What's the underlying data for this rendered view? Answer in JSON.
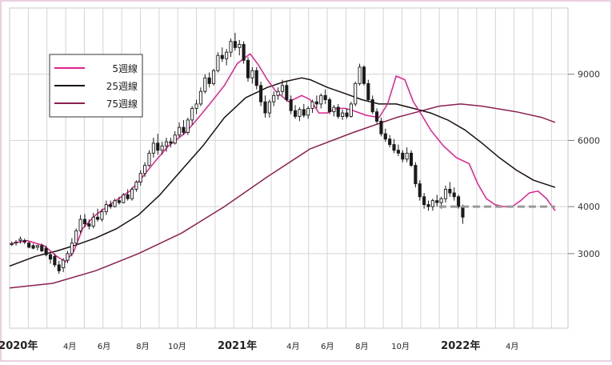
{
  "chart_data": {
    "type": "candlestick",
    "grid": true,
    "legend": {
      "placement": "top-left",
      "entries": [
        {
          "label": "5週線",
          "color": "#e0208c"
        },
        {
          "label": "25週線",
          "color": "#1a1010"
        },
        {
          "label": "75週線",
          "color": "#8a2050"
        }
      ]
    },
    "y_axis": {
      "scale": "log",
      "side": "right",
      "ticks": [
        3000,
        4000,
        6000,
        9000
      ],
      "range": [
        1900,
        13500
      ]
    },
    "x_axis": {
      "range": [
        0,
        130
      ],
      "labels": [
        {
          "week": 2,
          "text": "2020年",
          "major": true
        },
        {
          "week": 14,
          "text": "4月",
          "major": false
        },
        {
          "week": 22,
          "text": "6月",
          "major": false
        },
        {
          "week": 31,
          "text": "8月",
          "major": false
        },
        {
          "week": 39,
          "text": "10月",
          "major": false
        },
        {
          "week": 53,
          "text": "2021年",
          "major": true
        },
        {
          "week": 66,
          "text": "4月",
          "major": false
        },
        {
          "week": 74,
          "text": "6月",
          "major": false
        },
        {
          "week": 82,
          "text": "8月",
          "major": false
        },
        {
          "week": 91,
          "text": "10月",
          "major": false
        },
        {
          "week": 105,
          "text": "2022年",
          "major": true
        },
        {
          "week": 117,
          "text": "4月",
          "major": false
        }
      ]
    },
    "support_line": {
      "value": 4000,
      "from_week": 100,
      "to_week": 127,
      "color": "#999999"
    },
    "series": [
      {
        "name": "5週線",
        "color": "#e0208c",
        "points": [
          [
            0,
            3180
          ],
          [
            4,
            3250
          ],
          [
            8,
            3150
          ],
          [
            11,
            2950
          ],
          [
            13,
            2850
          ],
          [
            15,
            3050
          ],
          [
            17,
            3500
          ],
          [
            20,
            3800
          ],
          [
            24,
            4100
          ],
          [
            28,
            4400
          ],
          [
            31,
            4800
          ],
          [
            34,
            5300
          ],
          [
            37,
            5800
          ],
          [
            41,
            6300
          ],
          [
            44,
            6900
          ],
          [
            47,
            7600
          ],
          [
            50,
            8400
          ],
          [
            53,
            9600
          ],
          [
            56,
            10200
          ],
          [
            58,
            9500
          ],
          [
            60,
            8700
          ],
          [
            62,
            8100
          ],
          [
            65,
            7600
          ],
          [
            68,
            7900
          ],
          [
            70,
            7700
          ],
          [
            72,
            7100
          ],
          [
            74,
            7100
          ],
          [
            76,
            7300
          ],
          [
            78,
            7300
          ],
          [
            80,
            7200
          ],
          [
            83,
            7000
          ],
          [
            86,
            6900
          ],
          [
            88,
            7500
          ],
          [
            90,
            8900
          ],
          [
            92,
            8700
          ],
          [
            94,
            7600
          ],
          [
            96,
            7000
          ],
          [
            98,
            6400
          ],
          [
            101,
            5800
          ],
          [
            104,
            5400
          ],
          [
            107,
            5200
          ],
          [
            109,
            4600
          ],
          [
            111,
            4200
          ],
          [
            113,
            4050
          ],
          [
            115,
            4000
          ],
          [
            117,
            4000
          ],
          [
            119,
            4150
          ],
          [
            121,
            4350
          ],
          [
            123,
            4400
          ],
          [
            125,
            4200
          ],
          [
            127,
            3900
          ]
        ]
      },
      {
        "name": "25週線",
        "color": "#1a1010",
        "points": [
          [
            0,
            2780
          ],
          [
            6,
            2950
          ],
          [
            11,
            3050
          ],
          [
            15,
            3150
          ],
          [
            20,
            3300
          ],
          [
            25,
            3500
          ],
          [
            30,
            3800
          ],
          [
            35,
            4300
          ],
          [
            40,
            5000
          ],
          [
            45,
            5800
          ],
          [
            50,
            6900
          ],
          [
            55,
            7800
          ],
          [
            60,
            8300
          ],
          [
            64,
            8600
          ],
          [
            68,
            8800
          ],
          [
            70,
            8700
          ],
          [
            74,
            8300
          ],
          [
            78,
            8000
          ],
          [
            82,
            7700
          ],
          [
            86,
            7500
          ],
          [
            90,
            7500
          ],
          [
            94,
            7300
          ],
          [
            98,
            7100
          ],
          [
            102,
            6800
          ],
          [
            106,
            6400
          ],
          [
            110,
            5900
          ],
          [
            114,
            5400
          ],
          [
            118,
            5000
          ],
          [
            122,
            4700
          ],
          [
            127,
            4500
          ]
        ]
      },
      {
        "name": "75週線",
        "color": "#8a2050",
        "points": [
          [
            0,
            2430
          ],
          [
            10,
            2500
          ],
          [
            20,
            2700
          ],
          [
            30,
            3000
          ],
          [
            40,
            3400
          ],
          [
            50,
            4000
          ],
          [
            60,
            4800
          ],
          [
            70,
            5700
          ],
          [
            80,
            6300
          ],
          [
            90,
            6900
          ],
          [
            100,
            7400
          ],
          [
            105,
            7500
          ],
          [
            110,
            7400
          ],
          [
            118,
            7150
          ],
          [
            124,
            6900
          ],
          [
            127,
            6700
          ]
        ]
      }
    ],
    "candles": [
      {
        "o": 3180,
        "h": 3230,
        "l": 3140,
        "c": 3190
      },
      {
        "o": 3200,
        "h": 3260,
        "l": 3150,
        "c": 3220
      },
      {
        "o": 3250,
        "h": 3330,
        "l": 3190,
        "c": 3280
      },
      {
        "o": 3250,
        "h": 3290,
        "l": 3180,
        "c": 3220
      },
      {
        "o": 3200,
        "h": 3230,
        "l": 3100,
        "c": 3120
      },
      {
        "o": 3150,
        "h": 3190,
        "l": 3080,
        "c": 3100
      },
      {
        "o": 3120,
        "h": 3170,
        "l": 3060,
        "c": 3150
      },
      {
        "o": 3150,
        "h": 3190,
        "l": 3030,
        "c": 3050
      },
      {
        "o": 3100,
        "h": 3150,
        "l": 2950,
        "c": 2980
      },
      {
        "o": 2980,
        "h": 3030,
        "l": 2820,
        "c": 2900
      },
      {
        "o": 2950,
        "h": 3000,
        "l": 2760,
        "c": 2800
      },
      {
        "o": 2800,
        "h": 2870,
        "l": 2650,
        "c": 2700
      },
      {
        "o": 2750,
        "h": 2920,
        "l": 2680,
        "c": 2880
      },
      {
        "o": 2880,
        "h": 3050,
        "l": 2830,
        "c": 3000
      },
      {
        "o": 3000,
        "h": 3300,
        "l": 2950,
        "c": 3200
      },
      {
        "o": 3200,
        "h": 3500,
        "l": 3150,
        "c": 3450
      },
      {
        "o": 3450,
        "h": 3800,
        "l": 3400,
        "c": 3700
      },
      {
        "o": 3700,
        "h": 3820,
        "l": 3520,
        "c": 3600
      },
      {
        "o": 3600,
        "h": 3700,
        "l": 3480,
        "c": 3550
      },
      {
        "o": 3550,
        "h": 3850,
        "l": 3500,
        "c": 3750
      },
      {
        "o": 3750,
        "h": 3950,
        "l": 3650,
        "c": 3700
      },
      {
        "o": 3700,
        "h": 3950,
        "l": 3650,
        "c": 3880
      },
      {
        "o": 3880,
        "h": 4150,
        "l": 3800,
        "c": 4050
      },
      {
        "o": 4050,
        "h": 4150,
        "l": 3950,
        "c": 4000
      },
      {
        "o": 4000,
        "h": 4200,
        "l": 3980,
        "c": 4150
      },
      {
        "o": 4150,
        "h": 4250,
        "l": 4050,
        "c": 4100
      },
      {
        "o": 4100,
        "h": 4350,
        "l": 4080,
        "c": 4300
      },
      {
        "o": 4300,
        "h": 4450,
        "l": 4150,
        "c": 4200
      },
      {
        "o": 4200,
        "h": 4500,
        "l": 4150,
        "c": 4450
      },
      {
        "o": 4450,
        "h": 4700,
        "l": 4380,
        "c": 4650
      },
      {
        "o": 4650,
        "h": 5000,
        "l": 4550,
        "c": 4900
      },
      {
        "o": 4900,
        "h": 5250,
        "l": 4800,
        "c": 5150
      },
      {
        "o": 5150,
        "h": 5650,
        "l": 5100,
        "c": 5550
      },
      {
        "o": 5550,
        "h": 6100,
        "l": 5400,
        "c": 5900
      },
      {
        "o": 5900,
        "h": 6250,
        "l": 5500,
        "c": 5650
      },
      {
        "o": 5650,
        "h": 5950,
        "l": 5500,
        "c": 5800
      },
      {
        "o": 5800,
        "h": 6100,
        "l": 5600,
        "c": 5950
      },
      {
        "o": 5950,
        "h": 6100,
        "l": 5750,
        "c": 5900
      },
      {
        "o": 5900,
        "h": 6350,
        "l": 5850,
        "c": 6200
      },
      {
        "o": 6200,
        "h": 6700,
        "l": 6100,
        "c": 6500
      },
      {
        "o": 6500,
        "h": 6800,
        "l": 6200,
        "c": 6300
      },
      {
        "o": 6300,
        "h": 6900,
        "l": 6200,
        "c": 6800
      },
      {
        "o": 6800,
        "h": 7400,
        "l": 6600,
        "c": 7300
      },
      {
        "o": 7300,
        "h": 7700,
        "l": 7050,
        "c": 7500
      },
      {
        "o": 7500,
        "h": 8300,
        "l": 7400,
        "c": 8100
      },
      {
        "o": 8100,
        "h": 9000,
        "l": 8000,
        "c": 8800
      },
      {
        "o": 8800,
        "h": 9100,
        "l": 8300,
        "c": 8500
      },
      {
        "o": 8500,
        "h": 9300,
        "l": 8400,
        "c": 9200
      },
      {
        "o": 9200,
        "h": 10300,
        "l": 9100,
        "c": 10100
      },
      {
        "o": 10100,
        "h": 10600,
        "l": 9700,
        "c": 9900
      },
      {
        "o": 9900,
        "h": 10500,
        "l": 9500,
        "c": 10300
      },
      {
        "o": 10300,
        "h": 11200,
        "l": 10000,
        "c": 11000
      },
      {
        "o": 11000,
        "h": 11600,
        "l": 10400,
        "c": 10600
      },
      {
        "o": 10600,
        "h": 11100,
        "l": 10100,
        "c": 10800
      },
      {
        "o": 10800,
        "h": 11000,
        "l": 9600,
        "c": 9800
      },
      {
        "o": 9800,
        "h": 10000,
        "l": 8600,
        "c": 8800
      },
      {
        "o": 8800,
        "h": 9400,
        "l": 8500,
        "c": 9200
      },
      {
        "o": 9200,
        "h": 9400,
        "l": 8200,
        "c": 8400
      },
      {
        "o": 8400,
        "h": 8600,
        "l": 7400,
        "c": 7600
      },
      {
        "o": 7600,
        "h": 7900,
        "l": 6900,
        "c": 7100
      },
      {
        "o": 7100,
        "h": 7700,
        "l": 6900,
        "c": 7600
      },
      {
        "o": 7600,
        "h": 8100,
        "l": 7400,
        "c": 7900
      },
      {
        "o": 7900,
        "h": 8300,
        "l": 7700,
        "c": 8100
      },
      {
        "o": 8100,
        "h": 8700,
        "l": 7900,
        "c": 8400
      },
      {
        "o": 8400,
        "h": 8600,
        "l": 7600,
        "c": 7700
      },
      {
        "o": 7700,
        "h": 7900,
        "l": 7050,
        "c": 7200
      },
      {
        "o": 7200,
        "h": 7450,
        "l": 6850,
        "c": 6950
      },
      {
        "o": 6950,
        "h": 7350,
        "l": 6750,
        "c": 7250
      },
      {
        "o": 7250,
        "h": 7500,
        "l": 6900,
        "c": 7000
      },
      {
        "o": 7000,
        "h": 7400,
        "l": 6850,
        "c": 7300
      },
      {
        "o": 7300,
        "h": 7700,
        "l": 7100,
        "c": 7600
      },
      {
        "o": 7600,
        "h": 7900,
        "l": 7300,
        "c": 7500
      },
      {
        "o": 7500,
        "h": 8000,
        "l": 7300,
        "c": 7900
      },
      {
        "o": 7900,
        "h": 8200,
        "l": 7500,
        "c": 7700
      },
      {
        "o": 7700,
        "h": 7800,
        "l": 7050,
        "c": 7150
      },
      {
        "o": 7150,
        "h": 7450,
        "l": 6950,
        "c": 7350
      },
      {
        "o": 7350,
        "h": 7500,
        "l": 6850,
        "c": 6950
      },
      {
        "o": 6950,
        "h": 7250,
        "l": 6800,
        "c": 7100
      },
      {
        "o": 7100,
        "h": 7300,
        "l": 6850,
        "c": 6950
      },
      {
        "o": 6950,
        "h": 7600,
        "l": 6900,
        "c": 7500
      },
      {
        "o": 7500,
        "h": 8600,
        "l": 7400,
        "c": 8500
      },
      {
        "o": 8500,
        "h": 9600,
        "l": 8400,
        "c": 9400
      },
      {
        "o": 9400,
        "h": 9500,
        "l": 8400,
        "c": 8500
      },
      {
        "o": 8500,
        "h": 8700,
        "l": 7600,
        "c": 7700
      },
      {
        "o": 7700,
        "h": 7900,
        "l": 7050,
        "c": 7150
      },
      {
        "o": 7150,
        "h": 7300,
        "l": 6650,
        "c": 6750
      },
      {
        "o": 6750,
        "h": 6900,
        "l": 6150,
        "c": 6250
      },
      {
        "o": 6250,
        "h": 6450,
        "l": 5950,
        "c": 6050
      },
      {
        "o": 6050,
        "h": 6200,
        "l": 5750,
        "c": 5850
      },
      {
        "o": 5850,
        "h": 6050,
        "l": 5550,
        "c": 5650
      },
      {
        "o": 5650,
        "h": 5850,
        "l": 5450,
        "c": 5550
      },
      {
        "o": 5550,
        "h": 5650,
        "l": 5250,
        "c": 5350
      },
      {
        "o": 5350,
        "h": 5750,
        "l": 5250,
        "c": 5550
      },
      {
        "o": 5550,
        "h": 5650,
        "l": 5100,
        "c": 5150
      },
      {
        "o": 5150,
        "h": 5250,
        "l": 4500,
        "c": 4600
      },
      {
        "o": 4600,
        "h": 4700,
        "l": 4150,
        "c": 4250
      },
      {
        "o": 4250,
        "h": 4350,
        "l": 3950,
        "c": 4050
      },
      {
        "o": 4050,
        "h": 4150,
        "l": 3900,
        "c": 4000
      },
      {
        "o": 4000,
        "h": 4200,
        "l": 3900,
        "c": 4150
      },
      {
        "o": 4150,
        "h": 4300,
        "l": 4000,
        "c": 4100
      },
      {
        "o": 4100,
        "h": 4250,
        "l": 3950,
        "c": 4200
      },
      {
        "o": 4200,
        "h": 4550,
        "l": 4100,
        "c": 4450
      },
      {
        "o": 4450,
        "h": 4650,
        "l": 4250,
        "c": 4350
      },
      {
        "o": 4350,
        "h": 4500,
        "l": 4150,
        "c": 4250
      },
      {
        "o": 4250,
        "h": 4300,
        "l": 3950,
        "c": 4000
      },
      {
        "o": 4000,
        "h": 4050,
        "l": 3600,
        "c": 3750
      }
    ]
  }
}
